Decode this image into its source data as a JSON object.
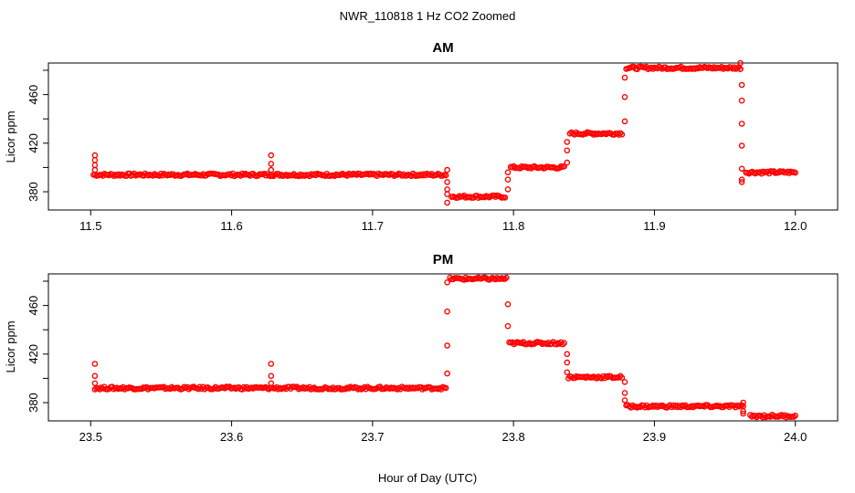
{
  "figure_title": "NWR_110818  1 Hz CO2 Zoomed",
  "x_axis_label": "Hour of Day (UTC)",
  "series_color": "#ff0000",
  "chart_data": [
    {
      "type": "scatter",
      "title": "AM",
      "xlabel": "",
      "ylabel": "Licor ppm",
      "xlim": [
        11.47,
        12.03
      ],
      "ylim": [
        365,
        486
      ],
      "x_ticks": [
        11.5,
        11.6,
        11.7,
        11.8,
        11.9,
        12.0
      ],
      "x_tick_labels": [
        "11.5",
        "11.6",
        "11.7",
        "11.8",
        "11.9",
        "12.0"
      ],
      "y_ticks": [
        380,
        420,
        460
      ],
      "y_tick_labels": [
        "380",
        "420",
        "460"
      ],
      "levels": [
        {
          "x_start": 11.502,
          "x_end": 11.752,
          "y": 394
        },
        {
          "x_start": 11.756,
          "x_end": 11.794,
          "y": 376
        },
        {
          "x_start": 11.798,
          "x_end": 11.836,
          "y": 400
        },
        {
          "x_start": 11.84,
          "x_end": 11.877,
          "y": 428
        },
        {
          "x_start": 11.88,
          "x_end": 11.961,
          "y": 482
        },
        {
          "x_start": 11.965,
          "x_end": 12.0,
          "y": 396
        }
      ],
      "spikes": [
        {
          "x": 11.503,
          "values": [
            398,
            402,
            406,
            410
          ]
        },
        {
          "x": 11.628,
          "values": [
            398,
            403,
            410
          ]
        },
        {
          "x": 11.753,
          "values": [
            398,
            388,
            382,
            378,
            371
          ]
        },
        {
          "x": 11.796,
          "values": [
            382,
            390,
            396
          ]
        },
        {
          "x": 11.838,
          "values": [
            404,
            414,
            421
          ]
        },
        {
          "x": 11.879,
          "values": [
            438,
            458,
            474
          ]
        },
        {
          "x": 11.961,
          "values": [
            486,
            481
          ]
        },
        {
          "x": 11.962,
          "values": [
            468,
            455,
            436,
            418,
            399,
            390,
            388
          ]
        }
      ]
    },
    {
      "type": "scatter",
      "title": "PM",
      "xlabel": "Hour of Day (UTC)",
      "ylabel": "Licor ppm",
      "xlim": [
        23.47,
        24.03
      ],
      "ylim": [
        365,
        486
      ],
      "x_ticks": [
        23.5,
        23.6,
        23.7,
        23.8,
        23.9,
        24.0
      ],
      "x_tick_labels": [
        "23.5",
        "23.6",
        "23.7",
        "23.8",
        "23.9",
        "24.0"
      ],
      "y_ticks": [
        380,
        420,
        460
      ],
      "y_tick_labels": [
        "380",
        "420",
        "460"
      ],
      "levels": [
        {
          "x_start": 23.503,
          "x_end": 23.752,
          "y": 392
        },
        {
          "x_start": 23.755,
          "x_end": 23.795,
          "y": 482
        },
        {
          "x_start": 23.797,
          "x_end": 23.836,
          "y": 429
        },
        {
          "x_start": 23.839,
          "x_end": 23.877,
          "y": 401
        },
        {
          "x_start": 23.88,
          "x_end": 23.962,
          "y": 377
        },
        {
          "x_start": 23.968,
          "x_end": 24.0,
          "y": 369
        }
      ],
      "spikes": [
        {
          "x": 23.503,
          "values": [
            396,
            402,
            412
          ]
        },
        {
          "x": 23.628,
          "values": [
            396,
            402,
            412
          ]
        },
        {
          "x": 23.753,
          "values": [
            404,
            427,
            455,
            479
          ]
        },
        {
          "x": 23.796,
          "values": [
            461,
            443
          ]
        },
        {
          "x": 23.838,
          "values": [
            420,
            413,
            405
          ]
        },
        {
          "x": 23.879,
          "values": [
            397,
            388,
            382
          ]
        },
        {
          "x": 23.963,
          "values": [
            380,
            377,
            373,
            371
          ]
        }
      ]
    }
  ]
}
